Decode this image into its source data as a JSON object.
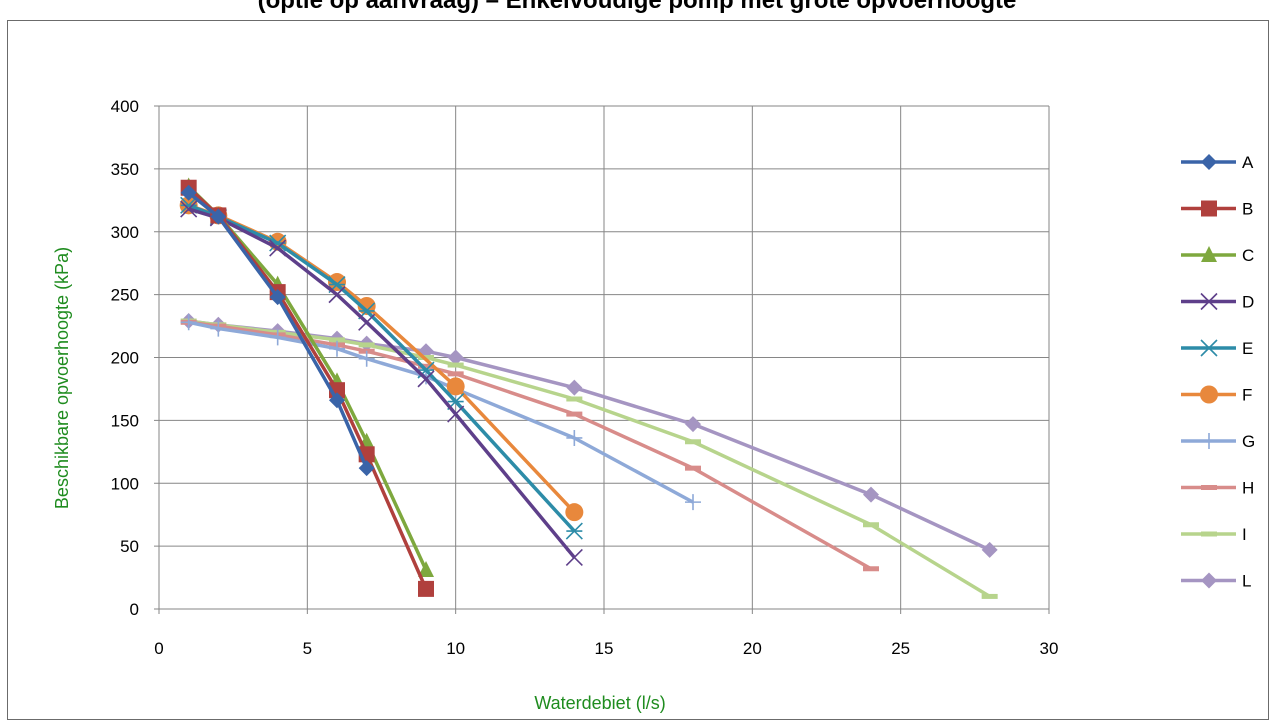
{
  "chart_data": {
    "type": "line",
    "title": "(optie op aanvraag) – Enkelvoudige pomp met grote opvoerhoogte",
    "xlabel": "Waterdebiet (l/s)",
    "ylabel": "Beschikbare opvoerhoogte (kPa)",
    "xlim": [
      0,
      30
    ],
    "ylim": [
      0,
      400
    ],
    "xticks": [
      "0",
      "5",
      "10",
      "15",
      "20",
      "25",
      "30"
    ],
    "yticks": [
      "0",
      "50",
      "100",
      "150",
      "200",
      "250",
      "300",
      "350",
      "400"
    ],
    "grid": true,
    "legend_position": "right",
    "series": [
      {
        "name": "A",
        "color": "#3a64a8",
        "marker": "diamond",
        "x": [
          1,
          2,
          4,
          6,
          7
        ],
        "y": [
          331,
          312,
          248,
          166,
          112
        ]
      },
      {
        "name": "B",
        "color": "#b0403d",
        "marker": "square",
        "x": [
          1,
          2,
          4,
          6,
          7,
          9
        ],
        "y": [
          335,
          313,
          252,
          174,
          123,
          16
        ]
      },
      {
        "name": "C",
        "color": "#7ea83e",
        "marker": "triangle",
        "x": [
          1,
          2,
          4,
          6,
          7,
          9
        ],
        "y": [
          336,
          313,
          258,
          181,
          133,
          31
        ]
      },
      {
        "name": "D",
        "color": "#5e3f8a",
        "marker": "x",
        "x": [
          1,
          2,
          4,
          6,
          7,
          9,
          10,
          14
        ],
        "y": [
          318,
          311,
          287,
          250,
          228,
          183,
          155,
          41
        ]
      },
      {
        "name": "E",
        "color": "#2d8ca8",
        "marker": "asterisk",
        "x": [
          1,
          2,
          4,
          6,
          7,
          9,
          10,
          14
        ],
        "y": [
          321,
          312,
          291,
          258,
          237,
          190,
          165,
          62
        ]
      },
      {
        "name": "F",
        "color": "#e8883c",
        "marker": "circle",
        "x": [
          1,
          2,
          4,
          6,
          7,
          10,
          14
        ],
        "y": [
          321,
          313,
          292,
          260,
          241,
          177,
          77
        ]
      },
      {
        "name": "G",
        "color": "#8ea9d8",
        "marker": "plus",
        "x": [
          1,
          2,
          4,
          6,
          7,
          9,
          10,
          14,
          18
        ],
        "y": [
          228,
          223,
          216,
          207,
          199,
          185,
          175,
          136,
          85
        ]
      },
      {
        "name": "H",
        "color": "#d88c8a",
        "marker": "dash",
        "x": [
          1,
          2,
          4,
          6,
          7,
          9,
          10,
          14,
          18,
          24
        ],
        "y": [
          228,
          225,
          218,
          210,
          205,
          193,
          187,
          155,
          112,
          32
        ]
      },
      {
        "name": "I",
        "color": "#b7d48c",
        "marker": "dash",
        "x": [
          1,
          2,
          4,
          6,
          7,
          9,
          10,
          14,
          18,
          24,
          28
        ],
        "y": [
          229,
          226,
          220,
          214,
          210,
          200,
          194,
          167,
          133,
          67,
          10
        ]
      },
      {
        "name": "L",
        "color": "#a595c2",
        "marker": "diamond",
        "x": [
          1,
          2,
          4,
          6,
          7,
          9,
          10,
          14,
          18,
          24,
          28
        ],
        "y": [
          229,
          226,
          221,
          215,
          211,
          205,
          200,
          176,
          147,
          91,
          47
        ]
      }
    ]
  }
}
